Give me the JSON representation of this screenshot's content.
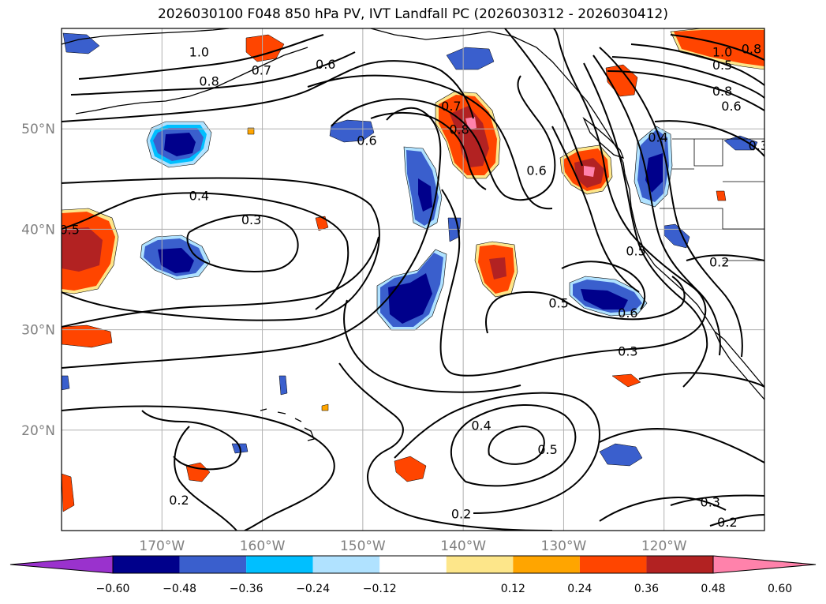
{
  "title": "2026030100 F048 850 hPa PV, IVT Landfall PC (2026030312 - 2026030412)",
  "map": {
    "lon_range": [
      -180,
      -110
    ],
    "lat_range": [
      10,
      60
    ],
    "lon_ticks": [
      {
        "lon": -170,
        "label": "170°W"
      },
      {
        "lon": -160,
        "label": "160°W"
      },
      {
        "lon": -150,
        "label": "150°W"
      },
      {
        "lon": -140,
        "label": "140°W"
      },
      {
        "lon": -130,
        "label": "130°W"
      },
      {
        "lon": -120,
        "label": "120°W"
      }
    ],
    "lat_ticks": [
      {
        "lat": 20,
        "label": "20°N"
      },
      {
        "lat": 30,
        "label": "30°N"
      },
      {
        "lat": 40,
        "label": "40°N"
      },
      {
        "lat": 50,
        "label": "50°N"
      }
    ],
    "grid": true,
    "contour_labels": [
      {
        "text": "1.0",
        "lon": -166.3,
        "lat": 57.6
      },
      {
        "text": "0.7",
        "lon": -160.1,
        "lat": 55.8
      },
      {
        "text": "0.6",
        "lon": -153.7,
        "lat": 56.4
      },
      {
        "text": "0.8",
        "lon": -165.3,
        "lat": 54.7
      },
      {
        "text": "0.7",
        "lon": -141.2,
        "lat": 52.2
      },
      {
        "text": "0.8",
        "lon": -140.4,
        "lat": 49.9
      },
      {
        "text": "0.6",
        "lon": -149.6,
        "lat": 48.8
      },
      {
        "text": "0.6",
        "lon": -132.7,
        "lat": 45.8
      },
      {
        "text": "0.4",
        "lon": -166.3,
        "lat": 43.3
      },
      {
        "text": "0.3",
        "lon": -161.1,
        "lat": 40.9
      },
      {
        "text": "0.5",
        "lon": -179.2,
        "lat": 39.9
      },
      {
        "text": "0.5",
        "lon": -114.2,
        "lat": 56.3
      },
      {
        "text": "0.8",
        "lon": -114.2,
        "lat": 53.7
      },
      {
        "text": "0.6",
        "lon": -113.3,
        "lat": 52.2
      },
      {
        "text": "1.0",
        "lon": -114.2,
        "lat": 57.6
      },
      {
        "text": "0.8",
        "lon": -111.3,
        "lat": 57.9
      },
      {
        "text": "0.3",
        "lon": -110.6,
        "lat": 48.3
      },
      {
        "text": "0.4",
        "lon": -120.6,
        "lat": 49.1
      },
      {
        "text": "0.5",
        "lon": -122.8,
        "lat": 37.8
      },
      {
        "text": "0.2",
        "lon": -114.5,
        "lat": 36.7
      },
      {
        "text": "0.5",
        "lon": -130.5,
        "lat": 32.6
      },
      {
        "text": "0.6",
        "lon": -123.6,
        "lat": 31.6
      },
      {
        "text": "0.3",
        "lon": -123.6,
        "lat": 27.8
      },
      {
        "text": "0.4",
        "lon": -138.2,
        "lat": 20.4
      },
      {
        "text": "0.5",
        "lon": -131.6,
        "lat": 18.0
      },
      {
        "text": "0.2",
        "lon": -168.3,
        "lat": 13.0
      },
      {
        "text": "0.2",
        "lon": -140.2,
        "lat": 11.6
      },
      {
        "text": "0.3",
        "lon": -115.4,
        "lat": 12.8
      },
      {
        "text": "0.2",
        "lon": -113.7,
        "lat": 10.8
      }
    ]
  },
  "colorbar": {
    "ticks": [
      "−0.60",
      "−0.48",
      "−0.36",
      "−0.24",
      "−0.12",
      "0.12",
      "0.24",
      "0.36",
      "0.48",
      "0.60"
    ],
    "colors": [
      "#9a32cd",
      "#00008b",
      "#3a5fcd",
      "#00bfff",
      "#b0e2ff",
      "#ffffff",
      "#fde68a",
      "#ffa500",
      "#ff4500",
      "#b22222",
      "#ff82ab"
    ]
  },
  "colors": {
    "coast": "#000000",
    "contour": "#000000",
    "grid": "#b0b0b0"
  }
}
